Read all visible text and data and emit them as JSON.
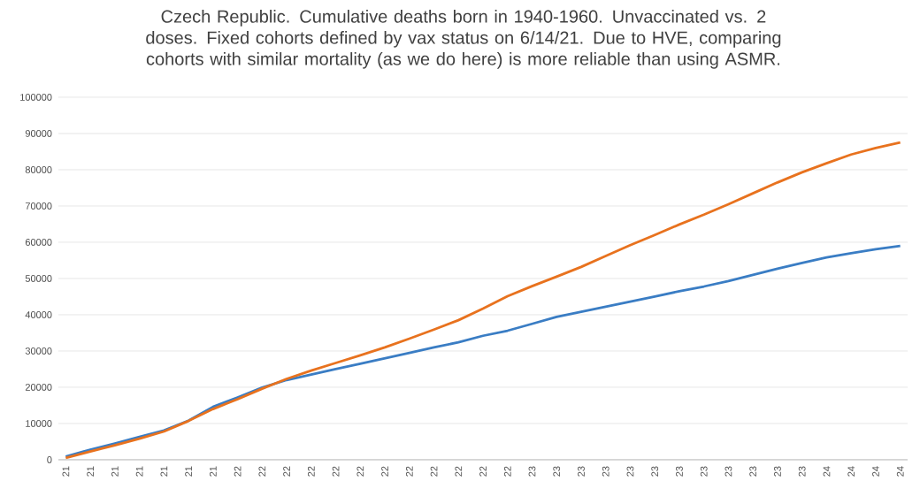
{
  "chart_data": {
    "type": "line",
    "title": "Czech Republic. Cumulative deaths born in 1940-1960. Unvaccinated vs. 2 doses. Fixed cohorts defined by vax status on 6/14/21. Due to HVE, comparing cohorts with similar mortality (as we do here) is more reliable  than using ASMR.",
    "categories": [
      "21",
      "21",
      "21",
      "21",
      "21",
      "21",
      "21",
      "22",
      "22",
      "22",
      "22",
      "22",
      "22",
      "22",
      "22",
      "22",
      "22",
      "22",
      "22",
      "23",
      "23",
      "23",
      "23",
      "23",
      "23",
      "23",
      "23",
      "23",
      "23",
      "23",
      "23",
      "24",
      "24",
      "24",
      "24"
    ],
    "series": [
      {
        "color": "#3a7dc4",
        "values": [
          900,
          2800,
          4500,
          6300,
          8100,
          10800,
          14600,
          17200,
          19900,
          22000,
          23500,
          25000,
          26500,
          28000,
          29500,
          31000,
          32400,
          34200,
          35600,
          37500,
          39400,
          40800,
          42200,
          43600,
          45000,
          46500,
          47800,
          49300,
          51000,
          52700,
          54300,
          55800,
          57000,
          58100,
          59000
        ]
      },
      {
        "color": "#e8721e",
        "values": [
          500,
          2300,
          4000,
          5800,
          7800,
          10700,
          14000,
          16700,
          19600,
          22300,
          24600,
          26700,
          28800,
          31000,
          33400,
          35900,
          38500,
          41700,
          45100,
          47900,
          50500,
          53200,
          56200,
          59200,
          62000,
          64900,
          67600,
          70500,
          73500,
          76500,
          79300,
          81800,
          84200,
          86000,
          87500
        ]
      }
    ],
    "ylim": [
      0,
      100000
    ],
    "yticks": [
      0,
      10000,
      20000,
      30000,
      40000,
      50000,
      60000,
      70000,
      80000,
      90000,
      100000
    ],
    "grid": "y",
    "marker": "none",
    "line_style": "solid"
  }
}
